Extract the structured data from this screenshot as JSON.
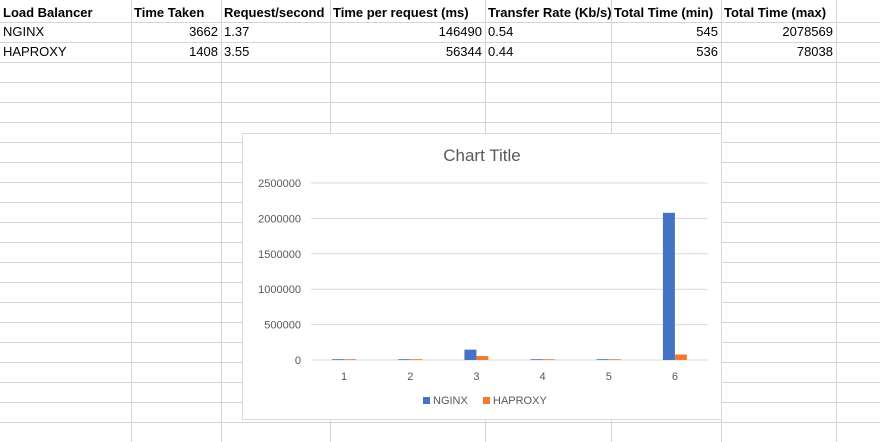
{
  "columns": [
    "Load Balancer",
    "Time Taken",
    "Request/second",
    "Time per request (ms)",
    "Transfer Rate (Kb/s)",
    "Total Time (min)",
    "Total Time (max)"
  ],
  "rows": [
    [
      "NGINX",
      "3662",
      "1.37",
      "146490",
      "0.54",
      "545",
      "2078569"
    ],
    [
      "HAPROXY",
      "1408",
      "3.55",
      "56344",
      "0.44",
      "536",
      "78038"
    ]
  ],
  "colors": {
    "nginx": "#4472c4",
    "haproxy": "#ed7d31",
    "grid": "#d9d9d9",
    "text": "#595959"
  },
  "chart_data": {
    "type": "bar",
    "title": "Chart Title",
    "categories": [
      "1",
      "2",
      "3",
      "4",
      "5",
      "6"
    ],
    "ylim": [
      0,
      2500000
    ],
    "yticks": [
      "0",
      "500000",
      "1000000",
      "1500000",
      "2000000",
      "2500000"
    ],
    "grid": true,
    "legend_position": "bottom",
    "series": [
      {
        "name": "NGINX",
        "values": [
          3662,
          1.37,
          146490,
          0.54,
          545,
          2078569
        ]
      },
      {
        "name": "HAPROXY",
        "values": [
          1408,
          3.55,
          56344,
          0.44,
          536,
          78038
        ]
      }
    ]
  }
}
